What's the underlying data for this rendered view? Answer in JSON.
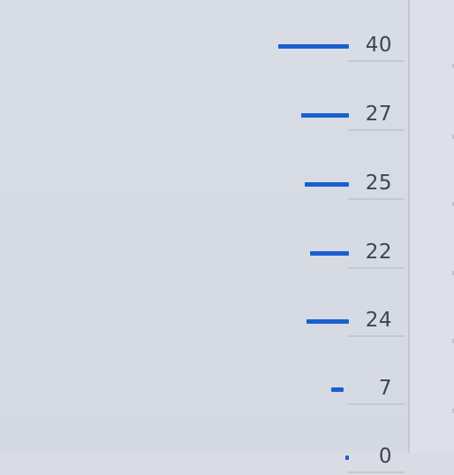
{
  "chart_data": {
    "type": "bar",
    "orientation": "horizontal",
    "values": [
      40,
      27,
      25,
      22,
      24,
      7,
      0
    ],
    "value_labels": [
      "40",
      "27",
      "25",
      "22",
      "24",
      "7",
      "0"
    ],
    "bar_color": "#1a5fd0"
  },
  "colors": {
    "background": "#d8dce5",
    "bar": "#1a5fd0",
    "text": "#3e4450",
    "divider": "#c4c8d2"
  }
}
